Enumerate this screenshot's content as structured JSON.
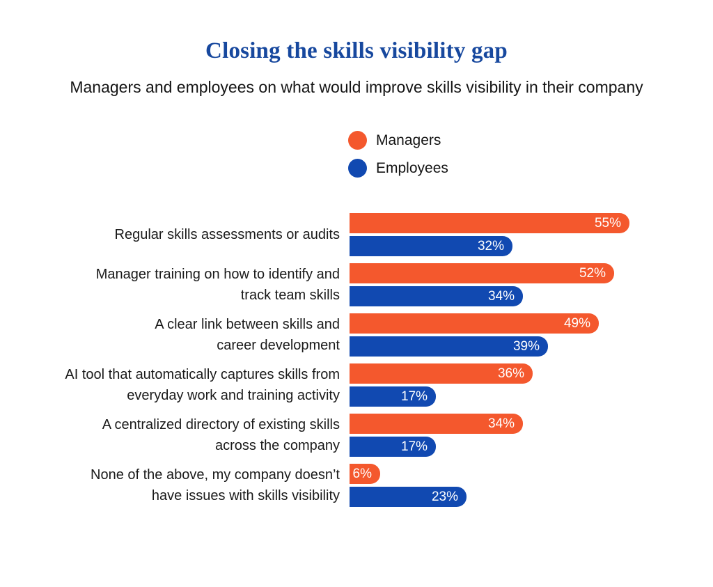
{
  "page": {
    "background": "#FFFFFF"
  },
  "colors": {
    "title": "#17489E",
    "category_text": "#1A1A1A",
    "bar_value_text": "#FFFFFF"
  },
  "chart_data": {
    "type": "bar",
    "orientation": "horizontal",
    "title": "Closing the skills visibility gap",
    "subtitle": "Managers and employees on what would improve skills visibility in their company",
    "unit": "%",
    "xlim": [
      0,
      55
    ],
    "grid": false,
    "legend_position": "top-center",
    "categories": [
      "Regular skills assessments or audits",
      "Manager training on how to identify and track team skills",
      "A clear link between skills and career development",
      "AI tool that automatically captures skills from everyday work and training activity",
      "A centralized directory of existing skills across the company",
      "None of the above, my company doesn’t have issues with skills visibility"
    ],
    "category_lines": [
      [
        "Regular skills assessments or audits"
      ],
      [
        "Manager training on how to identify and",
        "track team skills"
      ],
      [
        "A clear link between skills and",
        "career development"
      ],
      [
        "AI tool that automatically captures skills from",
        "everyday work and training activity"
      ],
      [
        "A centralized directory of existing skills",
        "across the company"
      ],
      [
        "None of the above, my company doesn’t",
        "have issues with skills visibility"
      ]
    ],
    "series": [
      {
        "name": "Managers",
        "color": "#F4582D",
        "values": [
          55,
          52,
          49,
          36,
          34,
          6
        ]
      },
      {
        "name": "Employees",
        "color": "#1149B1",
        "values": [
          32,
          34,
          39,
          17,
          17,
          23
        ]
      }
    ],
    "value_labels": {
      "Managers": [
        "55%",
        "52%",
        "49%",
        "36%",
        "34%",
        "6%"
      ],
      "Employees": [
        "32%",
        "34%",
        "39%",
        "17%",
        "17%",
        "23%"
      ]
    },
    "value_label_format": "{value}%"
  }
}
